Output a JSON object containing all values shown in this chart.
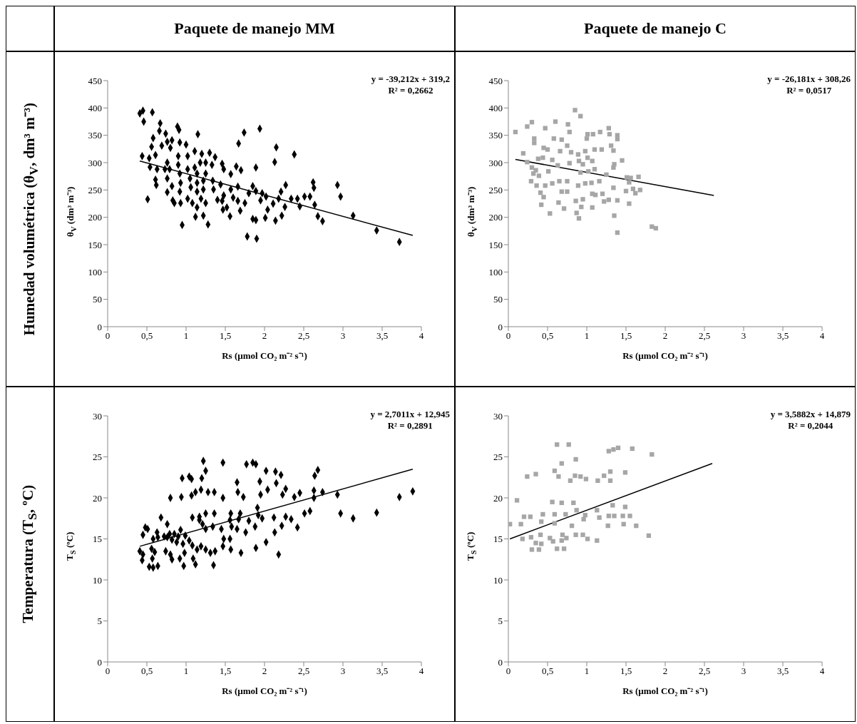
{
  "chart_data": [
    {
      "type": "scatter",
      "title": "Paquete de manejo MM",
      "xlabel": "Rs (µmol CO₂ m⁻² s⁻¹)",
      "ylabel": "θ$_{V}$ (dm³ m⁻³)",
      "annotations": [
        "Humedad volumétrica (θ$_{V}$, dm³ m⁻³)",
        "y = -39,212x + 319,2",
        "R² = 0,2662"
      ],
      "marker": "diamond",
      "xlim": [
        0,
        4
      ],
      "ylim": [
        0,
        450
      ],
      "xticks": [
        0,
        {
          "value": 0.5,
          "label": "0,5"
        },
        1,
        {
          "value": 1.5,
          "label": "1,5"
        },
        2,
        {
          "value": 2.5,
          "label": "2,5"
        },
        3,
        {
          "value": 3.5,
          "label": "3,5"
        },
        4
      ],
      "yticks": [
        0,
        50,
        100,
        150,
        200,
        250,
        300,
        350,
        400,
        450
      ],
      "series": [
        {
          "color": "#000000",
          "x": [
            0.41,
            0.45,
            0.46,
            0.57,
            0.67,
            0.66,
            0.74,
            0.58,
            0.56,
            0.76,
            0.82,
            0.89,
            0.91,
            1.15,
            0.69,
            0.8,
            0.61,
            0.92,
            1.0,
            0.44,
            0.53,
            0.54,
            0.63,
            0.76,
            0.79,
            0.73,
            0.61,
            0.62,
            0.76,
            0.82,
            0.76,
            0.51,
            0.83,
            0.85,
            0.93,
            0.9,
            0.9,
            0.92,
            0.93,
            0.92,
            0.95,
            1.02,
            1.02,
            1.05,
            1.06,
            1.02,
            1.08,
            1.14,
            1.11,
            1.2,
            1.3,
            1.37,
            1.18,
            1.25,
            1.33,
            1.11,
            1.14,
            1.25,
            1.14,
            1.22,
            1.34,
            1.14,
            1.22,
            1.19,
            1.25,
            1.12,
            1.22,
            1.28,
            1.46,
            1.48,
            1.64,
            1.7,
            1.57,
            1.44,
            1.35,
            1.57,
            1.66,
            1.48,
            1.4,
            1.46,
            1.6,
            1.66,
            1.52,
            1.47,
            1.69,
            1.75,
            1.56,
            1.74,
            1.94,
            1.67,
            1.89,
            1.8,
            1.85,
            1.89,
            1.97,
            1.95,
            2.02,
            2.04,
            2.11,
            2.01,
            1.85,
            1.89,
            1.78,
            1.9,
            2.15,
            2.13,
            2.38,
            2.27,
            2.21,
            2.18,
            2.26,
            2.22,
            2.14,
            2.34,
            2.42,
            2.45,
            2.51,
            2.58,
            2.62,
            2.63,
            2.64,
            2.68,
            2.74,
            2.93,
            2.97,
            3.13,
            3.43,
            3.72
          ],
          "values": [
            390,
            395,
            375,
            392,
            372,
            358,
            353,
            345,
            329,
            338,
            341,
            366,
            360,
            352,
            331,
            327,
            314,
            337,
            333,
            312,
            308,
            292,
            288,
            300,
            288,
            288,
            269,
            259,
            271,
            257,
            246,
            233,
            231,
            226,
            226,
            312,
            296,
            280,
            263,
            247,
            186,
            312,
            288,
            271,
            255,
            234,
            226,
            218,
            321,
            316,
            318,
            310,
            300,
            300,
            296,
            291,
            280,
            280,
            263,
            267,
            267,
            247,
            251,
            234,
            226,
            201,
            203,
            187,
            298,
            288,
            293,
            286,
            279,
            260,
            251,
            251,
            256,
            240,
            232,
            230,
            236,
            230,
            218,
            214,
            212,
            226,
            202,
            355,
            362,
            335,
            291,
            244,
            257,
            248,
            244,
            231,
            238,
            214,
            225,
            199,
            197,
            195,
            165,
            161,
            328,
            301,
            315,
            259,
            247,
            234,
            219,
            203,
            194,
            234,
            234,
            220,
            238,
            238,
            264,
            254,
            223,
            202,
            193,
            259,
            238,
            203,
            176,
            155
          ]
        },
        {
          "type": "line",
          "marker": "none",
          "color": "#000000",
          "x": [
            0.41,
            3.89
          ],
          "values": [
            303,
            167
          ]
        }
      ]
    },
    {
      "type": "scatter",
      "title": "Paquete de manejo C",
      "xlabel": "Rs (µmol CO₂ m⁻² s⁻¹)",
      "ylabel": "θ$_{V}$ (dm³ m⁻³)",
      "annotations": [
        "y = -26,181x + 308,26",
        "R² = 0,0517"
      ],
      "marker": "square",
      "xlim": [
        0,
        4
      ],
      "ylim": [
        0,
        450
      ],
      "xticks": [
        0,
        {
          "value": 0.5,
          "label": "0,5"
        },
        1,
        {
          "value": 1.5,
          "label": "1,5"
        },
        2,
        {
          "value": 2.5,
          "label": "2,5"
        },
        3,
        {
          "value": 3.5,
          "label": "3,5"
        },
        4
      ],
      "yticks": [
        0,
        50,
        100,
        150,
        200,
        250,
        300,
        350,
        400,
        450
      ],
      "series": [
        {
          "color": "#a6a6a6",
          "x": [
            0.09,
            0.19,
            0.24,
            0.3,
            0.33,
            0.33,
            0.47,
            0.6,
            0.76,
            0.78,
            0.85,
            0.92,
            0.58,
            0.68,
            0.75,
            0.66,
            0.45,
            0.5,
            0.8,
            0.38,
            0.44,
            0.56,
            0.24,
            0.3,
            0.35,
            0.39,
            0.32,
            0.51,
            0.63,
            0.78,
            0.89,
            0.98,
            0.9,
            0.95,
            1.01,
            1.07,
            1.01,
            1.08,
            1.0,
            1.17,
            1.28,
            1.29,
            1.39,
            1.39,
            1.31,
            1.34,
            1.1,
            1.19,
            1.45,
            1.35,
            1.34,
            1.1,
            1.02,
            0.92,
            1.25,
            1.16,
            1.06,
            0.98,
            0.89,
            0.75,
            0.65,
            0.56,
            0.36,
            0.29,
            0.47,
            0.41,
            0.45,
            0.42,
            0.53,
            0.68,
            0.75,
            0.64,
            0.71,
            0.86,
            0.95,
            0.93,
            0.87,
            0.9,
            1.07,
            1.07,
            1.11,
            1.2,
            1.22,
            1.28,
            1.39,
            1.34,
            1.35,
            1.39,
            1.51,
            1.56,
            1.54,
            1.66,
            1.5,
            1.59,
            1.62,
            1.68,
            1.54,
            1.83,
            1.88
          ],
          "values": [
            356,
            317,
            366,
            374,
            344,
            336,
            363,
            375,
            370,
            356,
            396,
            385,
            344,
            342,
            331,
            321,
            327,
            324,
            319,
            307,
            309,
            305,
            301,
            291,
            286,
            276,
            280,
            284,
            295,
            299,
            315,
            321,
            303,
            297,
            309,
            303,
            352,
            352,
            344,
            356,
            363,
            352,
            350,
            343,
            331,
            322,
            324,
            324,
            304,
            297,
            291,
            288,
            284,
            282,
            278,
            266,
            263,
            262,
            258,
            266,
            266,
            262,
            258,
            266,
            258,
            245,
            237,
            223,
            207,
            247,
            247,
            227,
            216,
            230,
            233,
            219,
            208,
            198,
            218,
            243,
            241,
            243,
            229,
            232,
            231,
            254,
            203,
            172,
            273,
            272,
            264,
            274,
            248,
            252,
            244,
            250,
            225,
            183,
            180
          ]
        },
        {
          "type": "line",
          "marker": "none",
          "color": "#000000",
          "x": [
            0.09,
            2.62
          ],
          "values": [
            306,
            240
          ]
        }
      ]
    },
    {
      "type": "scatter",
      "xlabel": "Rs (µmol CO₂ m⁻² s⁻¹)",
      "ylabel": "T$_{S}$ (ºC)",
      "annotations": [
        "Temperatura (T$_{S}$, ºC)",
        "y = 2,7011x + 12,945",
        "R² = 0,2891"
      ],
      "marker": "diamond",
      "xlim": [
        0,
        4
      ],
      "ylim": [
        0,
        30
      ],
      "xticks": [
        0,
        {
          "value": 0.5,
          "label": "0,5"
        },
        1,
        {
          "value": 1.5,
          "label": "1,5"
        },
        2,
        {
          "value": 2.5,
          "label": "2,5"
        },
        3,
        {
          "value": 3.5,
          "label": "3,5"
        },
        4
      ],
      "yticks": [
        0,
        5,
        10,
        15,
        20,
        25,
        30
      ],
      "series": [
        {
          "color": "#000000",
          "x": [
            1.22,
            1.47,
            1.77,
            1.85,
            1.89,
            1.25,
            2.02,
            2.14,
            2.21,
            2.68,
            2.64,
            0.95,
            1.04,
            1.07,
            1.2,
            1.65,
            1.94,
            2.15,
            2.04,
            2.27,
            2.63,
            2.74,
            2.93,
            3.89,
            3.72,
            1.19,
            1.07,
            1.12,
            1.28,
            1.36,
            0.8,
            0.94,
            1.47,
            1.66,
            1.73,
            1.95,
            2.23,
            2.38,
            2.45,
            2.63,
            1.91,
            1.69,
            1.57,
            1.36,
            1.25,
            1.08,
            1.17,
            0.68,
            0.76,
            1.56,
            1.67,
            1.8,
            1.92,
            1.97,
            2.12,
            2.27,
            2.34,
            2.22,
            2.42,
            2.51,
            2.58,
            2.97,
            3.13,
            3.43,
            1.88,
            1.76,
            1.65,
            1.58,
            1.56,
            1.48,
            1.45,
            1.34,
            1.25,
            1.21,
            1.17,
            2.13,
            2.02,
            1.89,
            2.18,
            1.7,
            1.57,
            1.47,
            1.37,
            1.31,
            1.25,
            1.19,
            1.14,
            1.08,
            1.04,
            0.99,
            0.93,
            0.85,
            0.9,
            0.96,
            0.88,
            0.82,
            0.79,
            0.76,
            0.72,
            0.64,
            0.63,
            0.58,
            0.48,
            0.51,
            0.45,
            0.41,
            0.45,
            0.44,
            0.56,
            0.6,
            0.57,
            0.53,
            0.58,
            0.64,
            0.74,
            0.8,
            0.82,
            0.92,
            0.98,
            0.97,
            1.09,
            1.12,
            1.35
          ],
          "values": [
            24.5,
            24.3,
            24.1,
            24.3,
            24.1,
            23.3,
            23.3,
            23.2,
            22.8,
            23.4,
            22.7,
            22.4,
            22.6,
            22.3,
            22.4,
            21.9,
            22.0,
            21.8,
            21.0,
            21.1,
            20.9,
            20.7,
            20.4,
            20.8,
            20.1,
            21.0,
            20.3,
            20.7,
            20.7,
            20.7,
            20.0,
            20.1,
            20.0,
            20.7,
            20.1,
            20.4,
            20.4,
            20.1,
            20.6,
            20.0,
            18.8,
            18.1,
            18.1,
            18.1,
            18.1,
            17.6,
            17.7,
            17.6,
            16.8,
            17.3,
            17.4,
            17.2,
            17.9,
            17.5,
            17.6,
            17.7,
            17.4,
            16.6,
            16.4,
            18.1,
            18.4,
            18.1,
            17.5,
            18.2,
            16.5,
            15.8,
            16.2,
            16.5,
            15.0,
            15.0,
            16.2,
            16.5,
            16.2,
            16.8,
            17.3,
            15.8,
            14.6,
            13.9,
            13.1,
            13.3,
            13.7,
            14.1,
            13.5,
            13.3,
            13.7,
            14.1,
            13.7,
            14.2,
            14.8,
            15.4,
            16.1,
            15.6,
            15.3,
            14.4,
            14.6,
            14.9,
            15.6,
            15.2,
            15.3,
            15.2,
            15.8,
            15.0,
            16.4,
            16.2,
            15.5,
            13.5,
            13.1,
            12.4,
            13.8,
            13.4,
            12.6,
            11.6,
            11.5,
            11.7,
            13.5,
            13.1,
            12.5,
            12.6,
            13.3,
            11.7,
            12.6,
            11.9,
            11.8
          ]
        },
        {
          "type": "line",
          "marker": "none",
          "color": "#000000",
          "x": [
            0.41,
            3.89
          ],
          "values": [
            14.1,
            23.5
          ]
        }
      ]
    },
    {
      "type": "scatter",
      "xlabel": "Rs (µmol CO₂ m⁻² s⁻¹)",
      "ylabel": "T$_{S}$ (ºC)",
      "annotations": [
        "y = 3,5882x + 14,879",
        "R² = 0,2044"
      ],
      "marker": "square",
      "xlim": [
        0,
        4
      ],
      "ylim": [
        0,
        30
      ],
      "xticks": [
        0,
        {
          "value": 0.5,
          "label": "0,5"
        },
        1,
        {
          "value": 1.5,
          "label": "1,5"
        },
        2,
        {
          "value": 2.5,
          "label": "2,5"
        },
        3,
        {
          "value": 3.5,
          "label": "3,5"
        },
        4
      ],
      "yticks": [
        0,
        5,
        10,
        15,
        20,
        25,
        30
      ],
      "series": [
        {
          "color": "#a6a6a6",
          "x": [
            0.62,
            0.77,
            0.86,
            0.68,
            1.28,
            1.34,
            1.4,
            1.58,
            1.83,
            0.24,
            0.35,
            0.59,
            0.64,
            0.79,
            0.85,
            0.92,
            0.99,
            1.14,
            1.22,
            1.3,
            1.3,
            1.49,
            0.11,
            0.56,
            0.68,
            0.83,
            1.33,
            1.49,
            0.2,
            0.28,
            0.44,
            0.59,
            0.73,
            0.87,
            0.98,
            1.13,
            1.16,
            1.28,
            1.35,
            1.46,
            1.55,
            0.02,
            0.16,
            0.42,
            0.59,
            0.81,
            0.96,
            1.27,
            1.47,
            1.63,
            1.79,
            0.18,
            0.29,
            0.41,
            0.53,
            0.35,
            0.42,
            0.57,
            0.69,
            0.68,
            0.74,
            0.86,
            0.95,
            1.01,
            1.13,
            0.3,
            0.39,
            0.62,
            0.71
          ],
          "values": [
            26.5,
            26.5,
            24.7,
            24.2,
            25.7,
            25.9,
            26.1,
            26.0,
            25.3,
            22.6,
            22.9,
            23.3,
            22.6,
            22.1,
            22.7,
            22.6,
            22.3,
            22.1,
            22.7,
            23.2,
            22.1,
            23.1,
            19.7,
            19.5,
            19.4,
            19.4,
            19.1,
            18.9,
            17.7,
            17.7,
            18.0,
            18.0,
            18.0,
            18.5,
            17.9,
            18.5,
            17.6,
            17.8,
            17.8,
            17.8,
            17.8,
            16.8,
            16.8,
            17.1,
            16.9,
            16.6,
            17.4,
            16.6,
            16.8,
            16.6,
            15.4,
            15.0,
            15.2,
            15.5,
            15.1,
            14.5,
            14.4,
            14.7,
            15.5,
            14.8,
            15.1,
            15.5,
            15.5,
            15.0,
            14.8,
            13.7,
            13.7,
            13.8,
            13.8
          ]
        },
        {
          "type": "line",
          "marker": "none",
          "color": "#000000",
          "x": [
            0.02,
            2.6
          ],
          "values": [
            15.0,
            24.2
          ]
        }
      ]
    }
  ]
}
